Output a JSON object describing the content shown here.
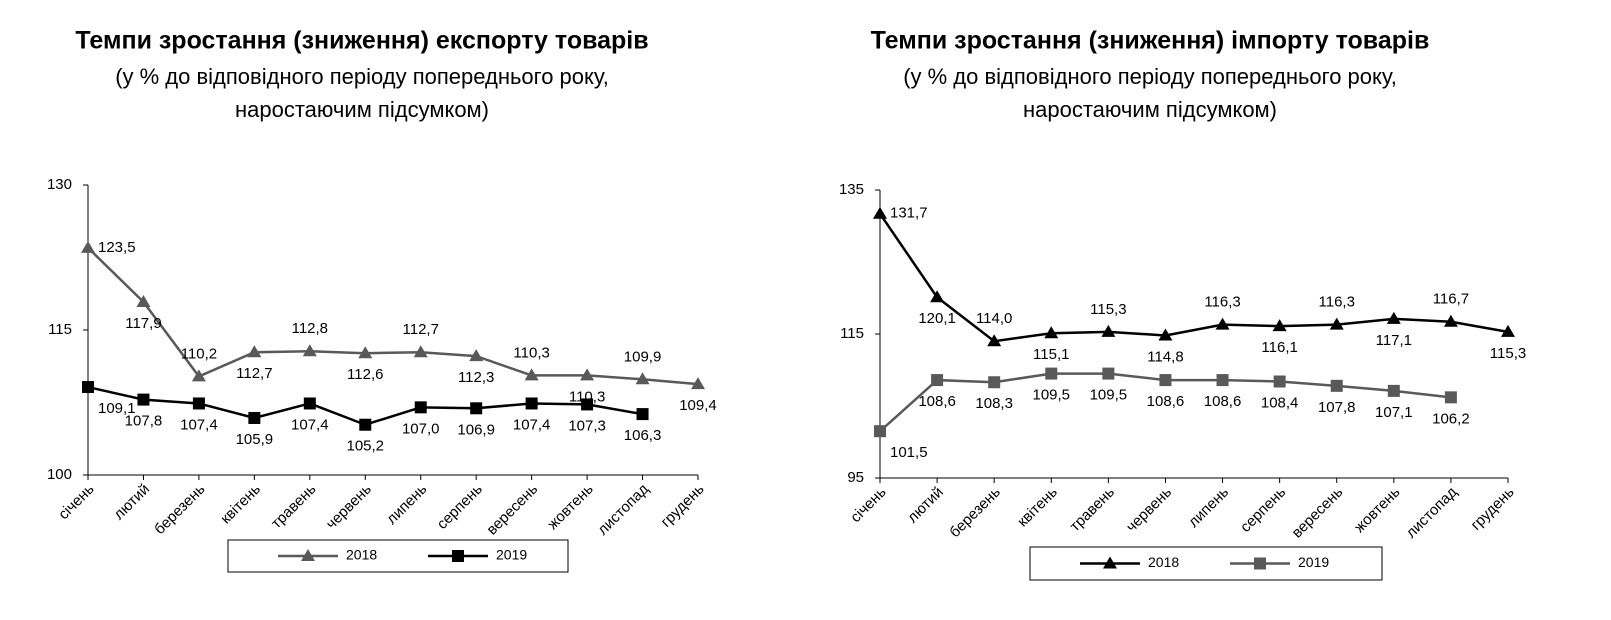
{
  "chart_data": [
    {
      "type": "line",
      "title": "Темпи зростання (зниження) експорту товарів",
      "subtitle": [
        "(у % до відповідного періоду попереднього року,",
        "наростаючим підсумком)"
      ],
      "categories": [
        "січень",
        "лютий",
        "березень",
        "квітень",
        "травень",
        "червень",
        "липень",
        "серпень",
        "вересень",
        "жовтень",
        "листопад",
        "грудень"
      ],
      "ylim": [
        100,
        130
      ],
      "yticks": [
        100,
        115,
        130
      ],
      "series": [
        {
          "name": "2018",
          "color": "#595959",
          "marker": "triangle",
          "values": [
            123.5,
            117.9,
            110.2,
            112.7,
            112.8,
            112.6,
            112.7,
            112.3,
            110.3,
            110.3,
            109.9,
            109.4
          ],
          "value_labels": [
            "123,5",
            "117,9",
            "110,2",
            "112,7",
            "112,8",
            "112,6",
            "112,7",
            "112,3",
            "110,3",
            "110,3",
            "109,9",
            "109,4"
          ]
        },
        {
          "name": "2019",
          "color": "#000000",
          "marker": "square",
          "values": [
            109.1,
            107.8,
            107.4,
            105.9,
            107.4,
            105.2,
            107.0,
            106.9,
            107.4,
            107.3,
            106.3,
            null
          ],
          "value_labels": [
            "109,1",
            "107,8",
            "107,4",
            "105,9",
            "107,4",
            "105,2",
            "107,0",
            "106,9",
            "107,4",
            "107,3",
            "106,3",
            null
          ]
        }
      ]
    },
    {
      "type": "line",
      "title": "Темпи зростання (зниження) імпорту товарів",
      "subtitle": [
        "(у % до відповідного періоду попереднього року,",
        "наростаючим підсумком)"
      ],
      "categories": [
        "січень",
        "лютий",
        "березень",
        "квітень",
        "травень",
        "червень",
        "липень",
        "серпень",
        "вересень",
        "жовтень",
        "листопад",
        "грудень"
      ],
      "ylim": [
        95,
        135
      ],
      "yticks": [
        95,
        115,
        135
      ],
      "series": [
        {
          "name": "2018",
          "color": "#000000",
          "marker": "triangle",
          "values": [
            131.7,
            120.1,
            114.0,
            115.1,
            115.3,
            114.8,
            116.3,
            116.1,
            116.3,
            117.1,
            116.7,
            115.3
          ],
          "value_labels": [
            "131,7",
            "120,1",
            "114,0",
            "115,1",
            "115,3",
            "114,8",
            "116,3",
            "116,1",
            "116,3",
            "117,1",
            "116,7",
            "115,3"
          ]
        },
        {
          "name": "2019",
          "color": "#595959",
          "marker": "square",
          "values": [
            101.5,
            108.6,
            108.3,
            109.5,
            109.5,
            108.6,
            108.6,
            108.4,
            107.8,
            107.1,
            106.2,
            null
          ],
          "value_labels": [
            "101,5",
            "108,6",
            "108,3",
            "109,5",
            "109,5",
            "108,6",
            "108,6",
            "108,4",
            "107,8",
            "107,1",
            "106,2",
            null
          ]
        }
      ]
    }
  ]
}
